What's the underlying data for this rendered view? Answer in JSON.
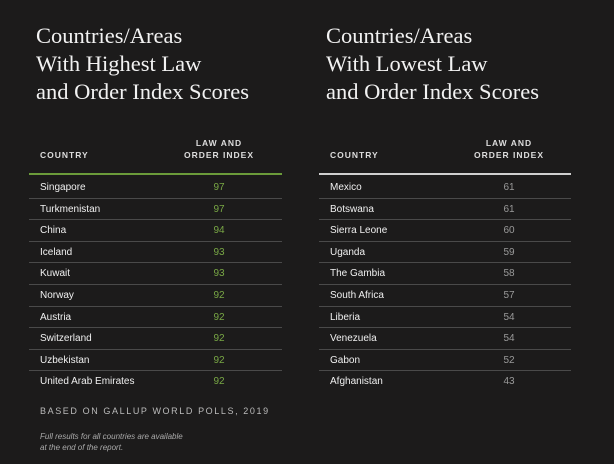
{
  "colors": {
    "background": "#1c1b1b",
    "high_accent": "#6b9b3a",
    "low_accent": "#cfcfcf",
    "high_value": "#79a845",
    "low_value": "#9a9a9a"
  },
  "left": {
    "title": [
      "Countries/Areas",
      "With Highest Law",
      "and Order Index Scores"
    ],
    "col_country": "COUNTRY",
    "col_index": [
      "LAW AND",
      "ORDER INDEX"
    ],
    "rows": [
      {
        "country": "Singapore",
        "score": "97"
      },
      {
        "country": "Turkmenistan",
        "score": "97"
      },
      {
        "country": "China",
        "score": "94"
      },
      {
        "country": "Iceland",
        "score": "93"
      },
      {
        "country": "Kuwait",
        "score": "93"
      },
      {
        "country": "Norway",
        "score": "92"
      },
      {
        "country": "Austria",
        "score": "92"
      },
      {
        "country": "Switzerland",
        "score": "92"
      },
      {
        "country": "Uzbekistan",
        "score": "92"
      },
      {
        "country": "United Arab Emirates",
        "score": "92"
      }
    ]
  },
  "right": {
    "title": [
      "Countries/Areas",
      "With Lowest Law",
      "and Order Index Scores"
    ],
    "col_country": "COUNTRY",
    "col_index": [
      "LAW AND",
      "ORDER INDEX"
    ],
    "rows": [
      {
        "country": "Mexico",
        "score": "61"
      },
      {
        "country": "Botswana",
        "score": "61"
      },
      {
        "country": "Sierra Leone",
        "score": "60"
      },
      {
        "country": "Uganda",
        "score": "59"
      },
      {
        "country": "The Gambia",
        "score": "58"
      },
      {
        "country": "South Africa",
        "score": "57"
      },
      {
        "country": "Liberia",
        "score": "54"
      },
      {
        "country": "Venezuela",
        "score": "54"
      },
      {
        "country": "Gabon",
        "score": "52"
      },
      {
        "country": "Afghanistan",
        "score": "43"
      }
    ]
  },
  "footer": {
    "source": "BASED ON GALLUP WORLD POLLS, 2019",
    "note": [
      "Full results for all countries are available",
      "at the end of the report."
    ]
  }
}
